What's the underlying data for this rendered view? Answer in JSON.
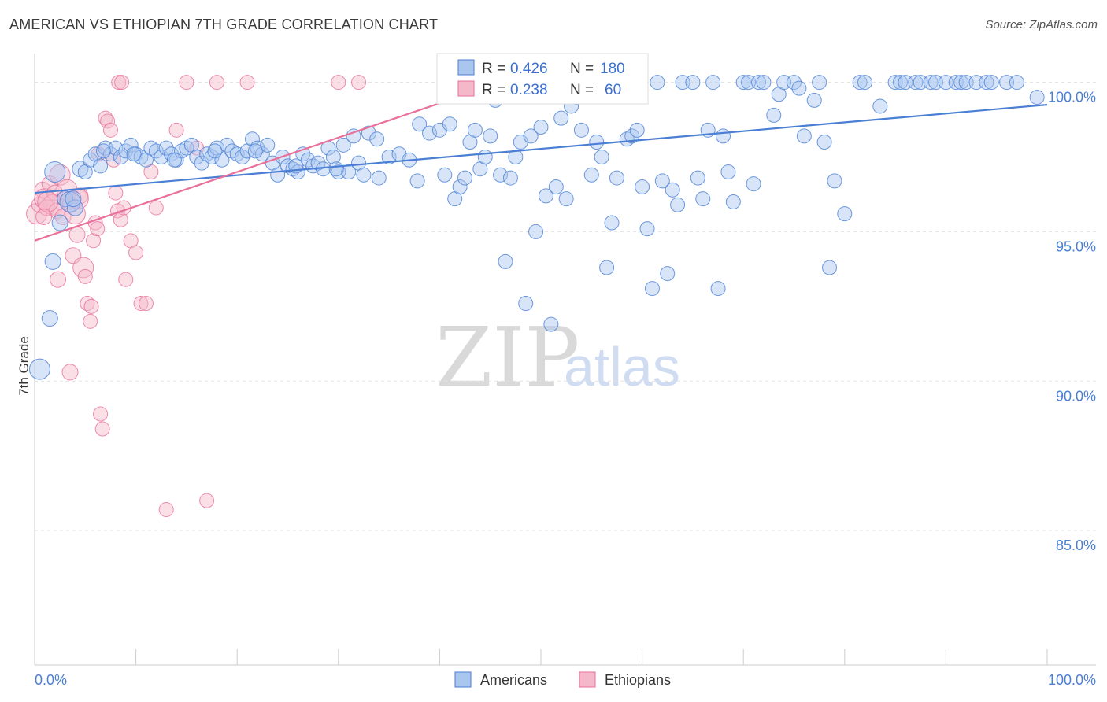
{
  "title": "AMERICAN VS ETHIOPIAN 7TH GRADE CORRELATION CHART",
  "source": "Source: ZipAtlas.com",
  "watermark": {
    "zip": "ZIP",
    "atlas": "atlas"
  },
  "colors": {
    "americans": "#4a7fd4",
    "ethiopians": "#e8709a",
    "americans_fill": "#a9c6ef",
    "ethiopians_fill": "#f4b8ca"
  },
  "stats": [
    {
      "r_label": "R = ",
      "r_value": "0.426",
      "n_label": "N = ",
      "n_value": "180"
    },
    {
      "r_label": "R = ",
      "r_value": "0.238",
      "n_label": "N = ",
      "n_value": "60"
    }
  ],
  "chart_data": {
    "type": "scatter",
    "title": "AMERICAN VS ETHIOPIAN 7TH GRADE CORRELATION CHART",
    "xlabel": "",
    "ylabel": "7th Grade",
    "xlim": [
      0,
      100
    ],
    "ylim": [
      80.5,
      100.7
    ],
    "x_tick_labels": [
      "0.0%",
      "100.0%"
    ],
    "y_ticks": [
      85,
      90,
      95,
      100
    ],
    "y_tick_labels": [
      "85.0%",
      "90.0%",
      "95.0%",
      "100.0%"
    ],
    "grid": "horizontal dashed",
    "legend_position": "bottom-center",
    "series": [
      {
        "name": "Americans",
        "trend": {
          "x": [
            0,
            100
          ],
          "y": [
            96.3,
            99.25
          ]
        },
        "points": [
          [
            0.5,
            90.4
          ],
          [
            1.5,
            92.1
          ],
          [
            1.8,
            94.0
          ],
          [
            2.0,
            97.0
          ],
          [
            2.5,
            95.3
          ],
          [
            3.0,
            96.1
          ],
          [
            3.5,
            96.0
          ],
          [
            4.0,
            95.8
          ],
          [
            4.5,
            97.1
          ],
          [
            5.0,
            97.0
          ],
          [
            5.5,
            97.4
          ],
          [
            6.0,
            97.6
          ],
          [
            6.5,
            97.2
          ],
          [
            7.0,
            97.8
          ],
          [
            7.5,
            97.6
          ],
          [
            8.0,
            97.8
          ],
          [
            8.5,
            97.5
          ],
          [
            9.0,
            97.7
          ],
          [
            9.5,
            97.9
          ],
          [
            10.0,
            97.6
          ],
          [
            10.5,
            97.5
          ],
          [
            11.0,
            97.4
          ],
          [
            11.5,
            97.8
          ],
          [
            12.0,
            97.7
          ],
          [
            12.5,
            97.5
          ],
          [
            13.0,
            97.8
          ],
          [
            13.5,
            97.6
          ],
          [
            14.0,
            97.4
          ],
          [
            14.5,
            97.7
          ],
          [
            15.0,
            97.8
          ],
          [
            15.5,
            97.9
          ],
          [
            16.0,
            97.5
          ],
          [
            16.5,
            97.3
          ],
          [
            17.0,
            97.6
          ],
          [
            17.5,
            97.5
          ],
          [
            18.0,
            97.8
          ],
          [
            18.5,
            97.4
          ],
          [
            19.0,
            97.9
          ],
          [
            19.5,
            97.7
          ],
          [
            20.0,
            97.6
          ],
          [
            20.5,
            97.5
          ],
          [
            21.0,
            97.7
          ],
          [
            21.5,
            98.1
          ],
          [
            22.0,
            97.8
          ],
          [
            22.5,
            97.6
          ],
          [
            23.0,
            97.9
          ],
          [
            23.5,
            97.3
          ],
          [
            24.0,
            96.9
          ],
          [
            24.5,
            97.5
          ],
          [
            25.0,
            97.2
          ],
          [
            25.5,
            97.1
          ],
          [
            26.0,
            97.0
          ],
          [
            26.5,
            97.6
          ],
          [
            27.0,
            97.4
          ],
          [
            27.5,
            97.2
          ],
          [
            28.0,
            97.3
          ],
          [
            28.5,
            97.1
          ],
          [
            29.0,
            97.8
          ],
          [
            29.5,
            97.5
          ],
          [
            30.0,
            97.0
          ],
          [
            30.5,
            97.9
          ],
          [
            31.0,
            97.0
          ],
          [
            31.5,
            98.2
          ],
          [
            32.0,
            97.3
          ],
          [
            32.5,
            96.9
          ],
          [
            33.0,
            98.3
          ],
          [
            34.0,
            96.8
          ],
          [
            35.0,
            97.5
          ],
          [
            36.0,
            97.6
          ],
          [
            37.0,
            97.4
          ],
          [
            38.0,
            98.6
          ],
          [
            39.0,
            98.3
          ],
          [
            40.0,
            98.4
          ],
          [
            40.5,
            96.9
          ],
          [
            41.0,
            98.6
          ],
          [
            41.5,
            96.1
          ],
          [
            42.0,
            96.5
          ],
          [
            42.5,
            96.8
          ],
          [
            43.0,
            98.0
          ],
          [
            43.5,
            98.4
          ],
          [
            44.0,
            97.1
          ],
          [
            44.5,
            97.5
          ],
          [
            45.0,
            98.2
          ],
          [
            45.5,
            99.4
          ],
          [
            46.0,
            96.9
          ],
          [
            46.5,
            94.0
          ],
          [
            47.0,
            96.8
          ],
          [
            47.5,
            97.5
          ],
          [
            48.0,
            98.0
          ],
          [
            48.5,
            92.6
          ],
          [
            49.0,
            98.2
          ],
          [
            49.5,
            95.0
          ],
          [
            50.0,
            98.5
          ],
          [
            50.5,
            96.2
          ],
          [
            51.0,
            91.9
          ],
          [
            51.5,
            96.5
          ],
          [
            52.0,
            98.8
          ],
          [
            52.5,
            96.1
          ],
          [
            53.0,
            99.2
          ],
          [
            53.5,
            99.5
          ],
          [
            54.0,
            98.4
          ],
          [
            55.0,
            96.9
          ],
          [
            55.5,
            98.0
          ],
          [
            56.0,
            97.5
          ],
          [
            56.5,
            93.8
          ],
          [
            57.0,
            95.3
          ],
          [
            57.5,
            96.8
          ],
          [
            58.0,
            100.0
          ],
          [
            58.5,
            98.1
          ],
          [
            59.0,
            98.2
          ],
          [
            59.5,
            98.4
          ],
          [
            60.0,
            96.5
          ],
          [
            60.5,
            95.1
          ],
          [
            61.0,
            93.1
          ],
          [
            61.5,
            100.0
          ],
          [
            62.0,
            96.7
          ],
          [
            62.5,
            93.6
          ],
          [
            63.0,
            96.4
          ],
          [
            63.5,
            95.9
          ],
          [
            64.0,
            100.0
          ],
          [
            65.0,
            100.0
          ],
          [
            65.5,
            96.8
          ],
          [
            66.0,
            96.1
          ],
          [
            66.5,
            98.4
          ],
          [
            67.0,
            100.0
          ],
          [
            67.5,
            93.1
          ],
          [
            68.0,
            98.2
          ],
          [
            68.5,
            97.0
          ],
          [
            69.0,
            96.0
          ],
          [
            70.0,
            100.0
          ],
          [
            70.5,
            100.0
          ],
          [
            71.0,
            96.6
          ],
          [
            71.5,
            100.0
          ],
          [
            72.0,
            100.0
          ],
          [
            73.0,
            98.9
          ],
          [
            73.5,
            99.6
          ],
          [
            74.0,
            100.0
          ],
          [
            75.0,
            100.0
          ],
          [
            75.5,
            99.8
          ],
          [
            76.0,
            98.2
          ],
          [
            77.0,
            99.4
          ],
          [
            77.5,
            100.0
          ],
          [
            78.0,
            98.0
          ],
          [
            78.5,
            93.8
          ],
          [
            79.0,
            96.7
          ],
          [
            80.0,
            95.6
          ],
          [
            81.5,
            100.0
          ],
          [
            82.0,
            100.0
          ],
          [
            83.5,
            99.2
          ],
          [
            85.0,
            100.0
          ],
          [
            85.5,
            100.0
          ],
          [
            86.0,
            100.0
          ],
          [
            87.0,
            100.0
          ],
          [
            87.5,
            100.0
          ],
          [
            88.5,
            100.0
          ],
          [
            89.0,
            100.0
          ],
          [
            90.0,
            100.0
          ],
          [
            91.0,
            100.0
          ],
          [
            91.5,
            100.0
          ],
          [
            92.0,
            100.0
          ],
          [
            93.0,
            100.0
          ],
          [
            94.0,
            100.0
          ],
          [
            94.5,
            100.0
          ],
          [
            96.0,
            100.0
          ],
          [
            97.0,
            100.0
          ],
          [
            99.0,
            99.5
          ],
          [
            3.8,
            96.1
          ],
          [
            6.8,
            97.7
          ],
          [
            9.8,
            97.6
          ],
          [
            13.8,
            97.4
          ],
          [
            17.8,
            97.7
          ],
          [
            21.8,
            97.7
          ],
          [
            25.8,
            97.2
          ],
          [
            29.8,
            97.1
          ],
          [
            33.8,
            98.1
          ],
          [
            37.8,
            96.7
          ]
        ]
      },
      {
        "name": "Ethiopians",
        "trend": {
          "x": [
            0,
            40
          ],
          "y": [
            94.7,
            99.3
          ]
        },
        "points": [
          [
            0.2,
            95.6
          ],
          [
            0.5,
            95.9
          ],
          [
            0.8,
            96.4
          ],
          [
            1.0,
            96.1
          ],
          [
            1.2,
            95.8
          ],
          [
            1.5,
            96.6
          ],
          [
            1.8,
            95.9
          ],
          [
            2.0,
            96.3
          ],
          [
            2.2,
            95.7
          ],
          [
            2.5,
            96.9
          ],
          [
            2.8,
            95.5
          ],
          [
            3.0,
            96.1
          ],
          [
            3.2,
            96.4
          ],
          [
            3.5,
            95.9
          ],
          [
            3.8,
            94.2
          ],
          [
            4.0,
            95.6
          ],
          [
            4.2,
            94.9
          ],
          [
            4.5,
            96.2
          ],
          [
            4.8,
            93.8
          ],
          [
            5.0,
            93.5
          ],
          [
            5.2,
            92.6
          ],
          [
            5.5,
            92.0
          ],
          [
            5.8,
            94.7
          ],
          [
            6.0,
            95.3
          ],
          [
            6.2,
            95.1
          ],
          [
            6.5,
            88.9
          ],
          [
            6.7,
            88.4
          ],
          [
            7.0,
            98.8
          ],
          [
            7.2,
            98.7
          ],
          [
            7.5,
            98.4
          ],
          [
            7.8,
            97.4
          ],
          [
            8.0,
            96.3
          ],
          [
            8.2,
            95.7
          ],
          [
            8.5,
            95.4
          ],
          [
            8.8,
            95.8
          ],
          [
            9.0,
            93.4
          ],
          [
            9.5,
            94.7
          ],
          [
            10.0,
            94.3
          ],
          [
            10.5,
            92.6
          ],
          [
            11.0,
            92.6
          ],
          [
            11.5,
            97.0
          ],
          [
            12.0,
            95.8
          ],
          [
            13.0,
            85.7
          ],
          [
            14.0,
            98.4
          ],
          [
            15.0,
            100.0
          ],
          [
            16.0,
            97.8
          ],
          [
            17.0,
            86.0
          ],
          [
            18.0,
            100.0
          ],
          [
            21.0,
            100.0
          ],
          [
            30.0,
            100.0
          ],
          [
            32.0,
            100.0
          ],
          [
            8.3,
            100.0
          ],
          [
            8.6,
            100.0
          ],
          [
            3.5,
            90.3
          ],
          [
            4.3,
            96.1
          ],
          [
            5.6,
            92.5
          ],
          [
            2.3,
            93.4
          ],
          [
            1.3,
            96.0
          ],
          [
            0.9,
            95.5
          ],
          [
            6.3,
            97.6
          ]
        ]
      }
    ]
  },
  "legend": {
    "americans": "Americans",
    "ethiopians": "Ethiopians"
  }
}
